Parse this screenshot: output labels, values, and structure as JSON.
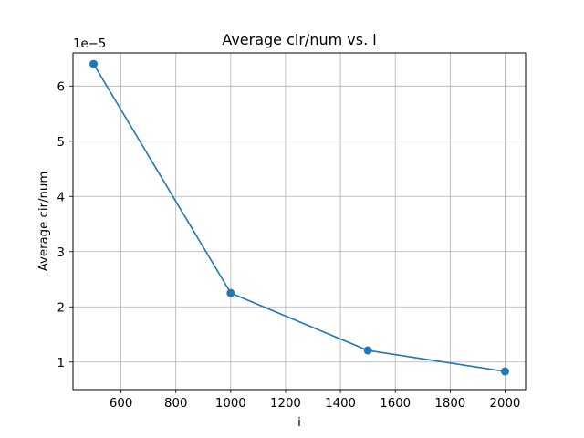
{
  "chart_data": {
    "type": "line",
    "title": "Average cir/num vs. i",
    "xlabel": "i",
    "ylabel": "Average cir/num",
    "y_scale_label": "1e−5",
    "xlim": [
      425,
      2075
    ],
    "ylim": [
      5e-06,
      6.6e-05
    ],
    "xticks": [
      600,
      800,
      1000,
      1200,
      1400,
      1600,
      1800,
      2000
    ],
    "xtick_labels": [
      "600",
      "800",
      "1000",
      "1200",
      "1400",
      "1600",
      "1800",
      "2000"
    ],
    "yticks": [
      1e-05,
      2e-05,
      3e-05,
      4e-05,
      5e-05,
      6e-05
    ],
    "ytick_labels": [
      "1",
      "2",
      "3",
      "4",
      "5",
      "6"
    ],
    "grid": true,
    "legend": "none",
    "line_color": "#1f77b4",
    "grid_color": "#b0b0b0",
    "series": [
      {
        "marker": "circle",
        "x": [
          500,
          1000,
          1500,
          2000
        ],
        "y": [
          6.4e-05,
          2.25e-05,
          1.21e-05,
          8.3e-06
        ]
      }
    ]
  }
}
